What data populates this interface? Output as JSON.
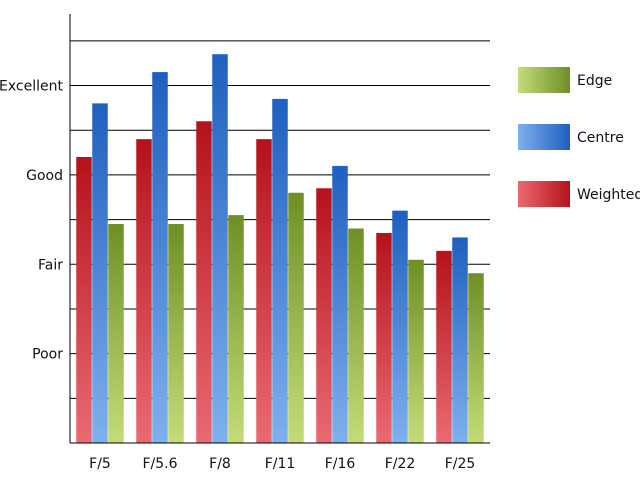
{
  "chart_data": {
    "type": "bar",
    "categories": [
      "F/5",
      "F/5.6",
      "F/8",
      "F/11",
      "F/16",
      "F/22",
      "F/25"
    ],
    "y_tick_labels": [
      {
        "value": 1,
        "label": "Poor"
      },
      {
        "value": 2,
        "label": "Fair"
      },
      {
        "value": 3,
        "label": "Good"
      },
      {
        "value": 4,
        "label": "Excellent"
      }
    ],
    "ylim": [
      0,
      4.8
    ],
    "grid_step": 0.5,
    "grid": true,
    "legend_position": "right",
    "series": [
      {
        "name": "Weighted",
        "values": [
          3.2,
          3.4,
          3.6,
          3.4,
          2.85,
          2.35,
          2.15
        ]
      },
      {
        "name": "Centre",
        "values": [
          3.8,
          4.15,
          4.35,
          3.85,
          3.1,
          2.6,
          2.3
        ]
      },
      {
        "name": "Edge",
        "values": [
          2.45,
          2.45,
          2.55,
          2.8,
          2.4,
          2.05,
          1.9
        ]
      }
    ],
    "legend_order": [
      "Edge",
      "Centre",
      "Weighted"
    ],
    "colors": {
      "Weighted": {
        "top": "#b5121b",
        "bottom": "#ea6a72"
      },
      "Centre": {
        "top": "#1f5fbf",
        "bottom": "#7fb0ee"
      },
      "Edge": {
        "top": "#6e8f26",
        "bottom": "#c3dc79"
      }
    }
  }
}
